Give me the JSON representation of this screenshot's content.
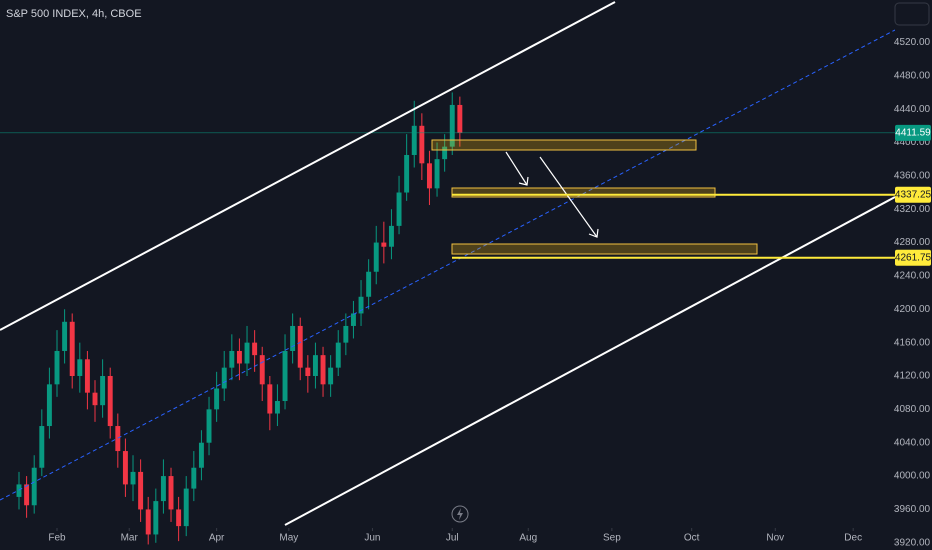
{
  "chart_data": {
    "type": "candlestick",
    "title": "S&P 500 INDEX, 4h, CBOE",
    "x": [
      -10,
      -8,
      -6,
      -4,
      -2,
      0,
      2,
      4,
      6,
      8,
      10,
      12,
      14,
      16,
      18,
      20,
      22,
      24,
      26,
      28,
      30,
      32,
      34,
      36,
      38,
      40,
      42,
      44,
      46,
      48,
      50,
      52,
      54,
      56,
      58,
      60,
      62,
      64,
      66,
      68,
      70,
      72,
      74,
      76,
      78,
      80,
      82,
      84,
      86,
      88,
      90,
      92,
      94,
      96,
      98,
      100,
      102,
      104,
      106
    ],
    "open": [
      3975,
      3990,
      3965,
      4010,
      4060,
      4110,
      4150,
      4185,
      4120,
      4140,
      4100,
      4085,
      4120,
      4060,
      4030,
      3990,
      4005,
      3960,
      3930,
      3970,
      4000,
      3960,
      3940,
      3985,
      4010,
      4040,
      4080,
      4105,
      4130,
      4150,
      4135,
      4160,
      4145,
      4110,
      4075,
      4090,
      4150,
      4180,
      4130,
      4120,
      4145,
      4110,
      4130,
      4160,
      4180,
      4195,
      4215,
      4245,
      4280,
      4275,
      4300,
      4340,
      4385,
      4420,
      4375,
      4345,
      4380,
      4395,
      4445
    ],
    "high": [
      4005,
      4000,
      4025,
      4080,
      4130,
      4175,
      4200,
      4195,
      4160,
      4150,
      4115,
      4140,
      4130,
      4075,
      4045,
      4025,
      4020,
      3975,
      3985,
      4020,
      4010,
      3975,
      4000,
      4030,
      4055,
      4095,
      4125,
      4150,
      4170,
      4165,
      4180,
      4175,
      4155,
      4120,
      4110,
      4170,
      4195,
      4190,
      4145,
      4160,
      4155,
      4145,
      4175,
      4195,
      4210,
      4235,
      4260,
      4300,
      4305,
      4320,
      4360,
      4410,
      4450,
      4435,
      4390,
      4400,
      4410,
      4460,
      4455
    ],
    "low": [
      3960,
      3950,
      3955,
      4000,
      4045,
      4095,
      4135,
      4105,
      4100,
      4080,
      4065,
      4070,
      4045,
      4010,
      3975,
      3970,
      3945,
      3918,
      3920,
      3955,
      3945,
      3922,
      3928,
      3970,
      3995,
      4025,
      4065,
      4090,
      4115,
      4115,
      4120,
      4125,
      4090,
      4055,
      4060,
      4080,
      4135,
      4115,
      4100,
      4105,
      4095,
      4095,
      4120,
      4145,
      4165,
      4180,
      4200,
      4230,
      4255,
      4260,
      4290,
      4330,
      4370,
      4355,
      4325,
      4335,
      4365,
      4385,
      4395
    ],
    "close": [
      3990,
      3965,
      4010,
      4060,
      4110,
      4150,
      4185,
      4120,
      4140,
      4100,
      4085,
      4120,
      4060,
      4030,
      3990,
      4005,
      3960,
      3930,
      3970,
      4000,
      3960,
      3940,
      3985,
      4010,
      4040,
      4080,
      4105,
      4130,
      4150,
      4135,
      4160,
      4145,
      4110,
      4075,
      4090,
      4150,
      4180,
      4130,
      4120,
      4145,
      4110,
      4130,
      4160,
      4180,
      4195,
      4215,
      4245,
      4280,
      4275,
      4300,
      4340,
      4385,
      4420,
      4375,
      4345,
      4380,
      4395,
      4445,
      4411.59
    ],
    "up_color": "#089981",
    "down_color": "#f23645",
    "levels": [
      4337.25,
      4261.75
    ],
    "level_color": "#ffeb3b",
    "xlim": [
      -15,
      220.5
    ],
    "xticks": [
      {
        "value": 0,
        "label": "Feb"
      },
      {
        "value": 19,
        "label": "Mar"
      },
      {
        "value": 42,
        "label": "Apr"
      },
      {
        "value": 61,
        "label": "May"
      },
      {
        "value": 83,
        "label": "Jun"
      },
      {
        "value": 104,
        "label": "Jul"
      },
      {
        "value": 124,
        "label": "Aug"
      },
      {
        "value": 146,
        "label": "Sep"
      },
      {
        "value": 167,
        "label": "Oct"
      },
      {
        "value": 189,
        "label": "Nov"
      },
      {
        "value": 209.5,
        "label": "Dec"
      }
    ],
    "ylim": [
      3911.36,
      4570.84
    ],
    "yticks": [
      {
        "value": 4520,
        "label": "4520.00"
      },
      {
        "value": 4480,
        "label": "4480.00"
      },
      {
        "value": 4440,
        "label": "4440.00"
      },
      {
        "value": 4400,
        "label": "4400.00"
      },
      {
        "value": 4360,
        "label": "4360.00"
      },
      {
        "value": 4320,
        "label": "4320.00"
      },
      {
        "value": 4280,
        "label": "4280.00"
      },
      {
        "value": 4240,
        "label": "4240.00"
      },
      {
        "value": 4200,
        "label": "4200.00"
      },
      {
        "value": 4160,
        "label": "4160.00"
      },
      {
        "value": 4120,
        "label": "4120.00"
      },
      {
        "value": 4080,
        "label": "4080.00"
      },
      {
        "value": 4040,
        "label": "4040.00"
      },
      {
        "value": 4000,
        "label": "4000.00"
      },
      {
        "value": 3960,
        "label": "3960.00"
      },
      {
        "value": 3920,
        "label": "3920.00"
      }
    ]
  }
}
